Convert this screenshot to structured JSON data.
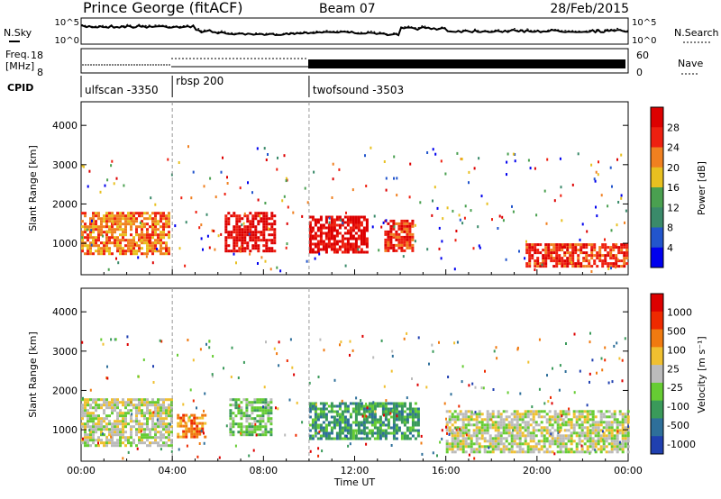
{
  "header": {
    "station": "Prince George (fitACF)",
    "beam": "Beam 07",
    "date": "28/Feb/2015"
  },
  "labels": {
    "nsky": "N.Sky",
    "nsearch": "N.Search",
    "freq": "Freq.",
    "freq_unit": "[MHz]",
    "nave": "Nave",
    "cpid": "CPID"
  },
  "noise_axis": {
    "ticks_left": [
      "10^5",
      "10^0"
    ],
    "ticks_right": [
      "10^5",
      "10^0"
    ]
  },
  "freq_axis": {
    "ticks_left": [
      "18",
      "8"
    ],
    "ticks_right": [
      "60",
      "0"
    ]
  },
  "cpid": [
    {
      "label": "ulfscan -3350",
      "start_hr": 0
    },
    {
      "label": "rbsp 200",
      "start_hr": 4
    },
    {
      "label": "twofsound -3503",
      "start_hr": 10
    }
  ],
  "chart_data": [
    {
      "type": "heatmap",
      "quantity": "power",
      "xlabel": "",
      "ylabel": "Slant Range [km]",
      "xlim": [
        0,
        24
      ],
      "ylim": [
        200,
        4600
      ],
      "yticks": [
        "1000",
        "2000",
        "3000",
        "4000"
      ],
      "colorbar": {
        "label": "Power [dB]",
        "ticks": [
          "28",
          "24",
          "20",
          "16",
          "12",
          "8",
          "4"
        ],
        "colors": [
          "#0000ee",
          "#2255cc",
          "#3a8a6a",
          "#4aa050",
          "#e8c020",
          "#f08020",
          "#ee2010",
          "#dd0000"
        ]
      },
      "bands": [
        {
          "t0": 0.0,
          "t1": 3.8,
          "r0": 700,
          "r1": 1800,
          "level": 5
        },
        {
          "t0": 6.3,
          "t1": 8.5,
          "r0": 800,
          "r1": 1800,
          "level": 7
        },
        {
          "t0": 10.0,
          "t1": 12.5,
          "r0": 800,
          "r1": 1700,
          "level": 7
        },
        {
          "t0": 13.3,
          "t1": 14.5,
          "r0": 800,
          "r1": 1600,
          "level": 6
        },
        {
          "t0": 19.5,
          "t1": 24.0,
          "r0": 400,
          "r1": 1000,
          "level": 6
        }
      ]
    },
    {
      "type": "heatmap",
      "quantity": "velocity",
      "xlabel": "Time UT",
      "ylabel": "Slant Range [km]",
      "xlim": [
        0,
        24
      ],
      "ylim": [
        200,
        4600
      ],
      "xticks": [
        "00:00",
        "04:00",
        "08:00",
        "12:00",
        "16:00",
        "20:00",
        "00:00"
      ],
      "yticks": [
        "1000",
        "2000",
        "3000",
        "4000"
      ],
      "colorbar": {
        "label": "Velocity [m s⁻¹]",
        "ticks": [
          "1000",
          "500",
          "100",
          "25",
          "-25",
          "-100",
          "-500",
          "-1000"
        ],
        "colors": [
          "#2040b0",
          "#2e6f9a",
          "#3a9a5a",
          "#66cc33",
          "#bbbbbb",
          "#f0c030",
          "#f07a10",
          "#ee2a00",
          "#dd0000"
        ]
      },
      "bands": [
        {
          "t0": 0.0,
          "t1": 4.0,
          "r0": 600,
          "r1": 1800,
          "level": 4
        },
        {
          "t0": 4.2,
          "t1": 5.5,
          "r0": 800,
          "r1": 1400,
          "level": 6
        },
        {
          "t0": 6.5,
          "t1": 8.3,
          "r0": 900,
          "r1": 1800,
          "level": 3
        },
        {
          "t0": 10.0,
          "t1": 14.8,
          "r0": 800,
          "r1": 1700,
          "level": 2
        },
        {
          "t0": 16.0,
          "t1": 24.0,
          "r0": 400,
          "r1": 1500,
          "level": 4
        }
      ]
    }
  ]
}
